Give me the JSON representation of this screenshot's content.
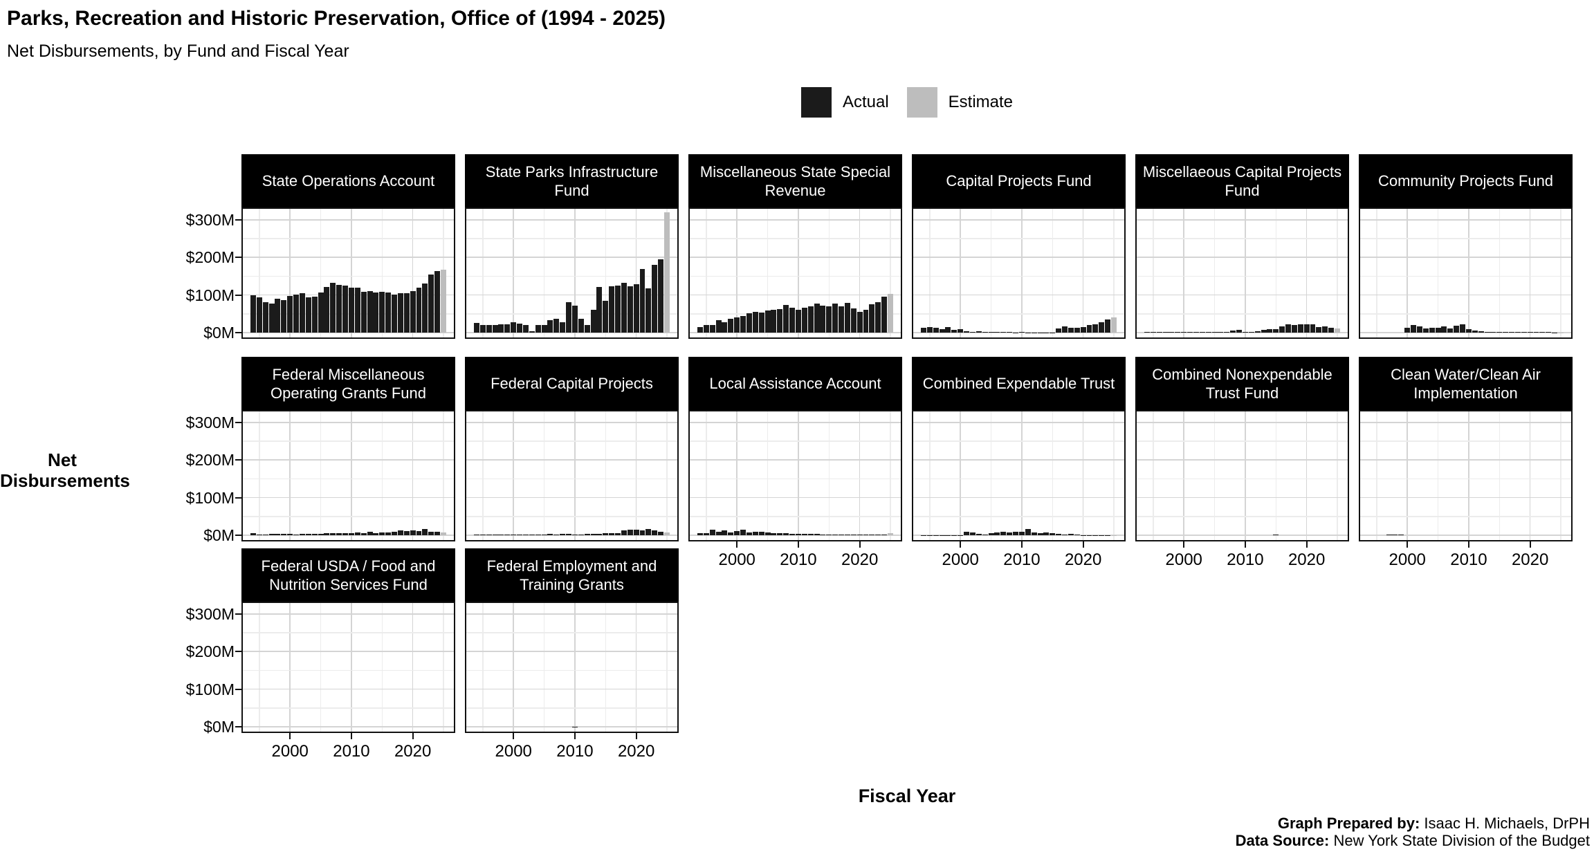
{
  "header": {
    "title": "Parks, Recreation and Historic Preservation, Office of (1994 - 2025)",
    "subtitle": "Net Disbursements, by Fund and Fiscal Year"
  },
  "legend": {
    "items": [
      {
        "label": "Actual",
        "color": "#1b1b1b"
      },
      {
        "label": "Estimate",
        "color": "#bdbdbd"
      }
    ]
  },
  "axis": {
    "y_label": "Net Disbursements",
    "x_label": "Fiscal Year",
    "y_tick_labels": [
      "$0M",
      "$100M",
      "$200M",
      "$300M"
    ],
    "x_tick_labels": [
      "2000",
      "2010",
      "2020"
    ]
  },
  "footer": {
    "prepared_by_label": "Graph Prepared by:",
    "prepared_by_value": " Isaac H. Michaels, DrPH",
    "source_label": "Data Source:",
    "source_value": " New York State Division of the Budget"
  },
  "chart_data": {
    "type": "bar",
    "unit": "$M (millions of dollars)",
    "years_start": 1994,
    "years_end": 2025,
    "estimate_last_n": 1,
    "y_ticks": [
      0,
      100,
      200,
      300
    ],
    "y_minor_ticks": [
      50,
      150,
      250
    ],
    "ylim": [
      0,
      335
    ],
    "x_major_tick_years": [
      2000,
      2010,
      2020
    ],
    "x_minor_tick_years": [
      1995,
      2005,
      2015,
      2025
    ],
    "legend_position": "top",
    "grid": true,
    "panels": [
      {
        "title": "State Operations Account",
        "values": [
          100,
          93,
          80,
          77,
          91,
          86,
          97,
          102,
          105,
          94,
          96,
          107,
          122,
          133,
          127,
          125,
          119,
          119,
          108,
          110,
          107,
          108,
          107,
          102,
          104,
          105,
          111,
          120,
          131,
          155,
          164,
          168
        ]
      },
      {
        "title": "State Parks Infrastructure Fund",
        "values": [
          26,
          20,
          20,
          21,
          22,
          22,
          28,
          24,
          21,
          3,
          20,
          21,
          33,
          37,
          28,
          80,
          72,
          36,
          20,
          61,
          121,
          84,
          123,
          125,
          133,
          123,
          128,
          169,
          117,
          180,
          195,
          319
        ]
      },
      {
        "title": "Miscellaneous State Special Revenue",
        "values": [
          15,
          20,
          21,
          34,
          28,
          37,
          40,
          44,
          52,
          55,
          53,
          58,
          61,
          63,
          74,
          66,
          61,
          67,
          69,
          78,
          72,
          70,
          77,
          69,
          79,
          64,
          56,
          61,
          75,
          80,
          96,
          103
        ]
      },
      {
        "title": "Capital Projects Fund",
        "values": [
          13,
          15,
          12,
          10,
          14,
          8,
          10,
          3,
          1,
          4,
          2.5,
          2,
          2,
          1,
          1,
          0.5,
          1,
          0.5,
          0.5,
          0.5,
          0.3,
          0.3,
          11,
          17,
          13,
          13,
          15,
          20,
          23,
          28,
          35,
          40
        ]
      },
      {
        "title": "Miscellaeous Capital Projects Fund",
        "values": [
          1,
          1,
          1,
          1,
          1,
          1,
          1,
          1,
          1,
          1,
          1,
          1,
          1,
          2,
          5,
          7,
          2,
          2,
          3,
          8,
          10,
          10,
          17,
          22,
          20,
          22,
          23,
          22,
          14,
          16,
          12,
          11
        ]
      },
      {
        "title": "Community Projects Fund",
        "values": [
          0,
          0,
          0,
          0,
          0,
          0,
          12,
          21,
          17,
          11,
          12,
          12,
          17,
          11,
          19,
          23,
          9,
          6,
          3,
          1,
          1,
          1,
          1,
          1,
          1,
          1,
          1,
          1,
          1,
          1,
          0.5,
          0.5
        ]
      },
      {
        "title": "Federal Miscellaneous Operating Grants Fund",
        "values": [
          5,
          2,
          2,
          3,
          3,
          4,
          3,
          2,
          4,
          4,
          4,
          4,
          5,
          5,
          6,
          6,
          6,
          7,
          6,
          9,
          6,
          7,
          8,
          10,
          12,
          11,
          13,
          11,
          16,
          9,
          10,
          8
        ]
      },
      {
        "title": "Federal Capital Projects",
        "values": [
          1,
          1,
          1,
          1,
          1,
          1,
          1,
          1,
          2,
          2,
          2,
          2,
          3,
          2,
          3,
          3,
          2,
          2,
          3,
          4,
          4,
          5,
          6,
          6,
          13,
          14,
          14,
          12,
          16,
          12,
          9,
          7
        ]
      },
      {
        "title": "Local Assistance Account",
        "values": [
          6,
          5,
          15,
          10,
          13,
          7,
          11,
          14,
          8,
          10,
          10,
          8,
          6,
          5,
          5,
          4,
          3,
          3,
          3,
          3,
          2,
          2,
          2,
          2,
          2,
          2,
          1,
          1,
          2,
          2,
          2,
          6
        ]
      },
      {
        "title": "Combined Expendable Trust",
        "values": [
          0.5,
          0.5,
          0.5,
          0.5,
          0.5,
          0.5,
          0.5,
          10,
          8,
          3,
          2,
          5,
          8,
          9,
          8,
          9,
          10,
          16,
          7,
          6,
          8,
          5,
          3,
          2,
          3,
          1,
          0.5,
          0.5,
          0.5,
          0.5,
          0.5,
          0.5
        ]
      },
      {
        "title": "Combined Nonexpendable Trust Fund",
        "values": [
          0,
          0,
          0,
          0,
          0,
          0,
          0,
          0,
          0,
          0,
          0,
          0,
          0,
          0,
          0,
          0,
          0,
          0,
          0,
          0,
          0,
          1.5,
          0,
          0,
          0,
          0,
          0,
          0,
          0,
          0,
          0,
          0
        ]
      },
      {
        "title": "Clean Water/Clean Air Implementation",
        "values": [
          0,
          0,
          0,
          1,
          1,
          1,
          0,
          0,
          0,
          0,
          0,
          0,
          0,
          0,
          0,
          0,
          0,
          0,
          0,
          0,
          0,
          0,
          0,
          0,
          0,
          0,
          0,
          0,
          0,
          0,
          0,
          0
        ]
      },
      {
        "title": "Federal USDA / Food and Nutrition Services Fund",
        "values": [
          0,
          0,
          0,
          0,
          0,
          0,
          0,
          0,
          0,
          0,
          0,
          0,
          0,
          0,
          0,
          0,
          0,
          0,
          0,
          0,
          0,
          0,
          0,
          0,
          0,
          0,
          0,
          0,
          0,
          0,
          0,
          0
        ]
      },
      {
        "title": "Federal Employment and Training Grants",
        "values": [
          0,
          0,
          0,
          0,
          0,
          0,
          0,
          0,
          0,
          0,
          0,
          0,
          0,
          0,
          0,
          0,
          0.5,
          0,
          0,
          0,
          0,
          0,
          0,
          0,
          0,
          0,
          0,
          0,
          0,
          0,
          0,
          0
        ]
      }
    ]
  }
}
